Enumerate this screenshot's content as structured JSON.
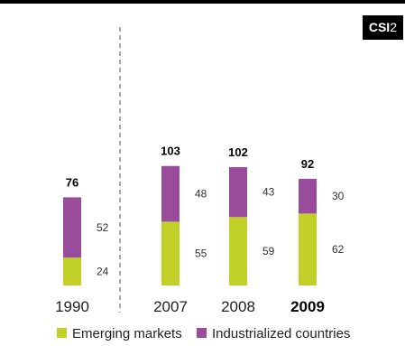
{
  "badge": {
    "code": "CSI",
    "number": "2"
  },
  "colors": {
    "emerging": "#c2d127",
    "industrialized": "#994c9c"
  },
  "chart_data": {
    "type": "bar",
    "stacked": true,
    "categories": [
      "1990",
      "2007",
      "2008",
      "2009"
    ],
    "highlighted_category": "2009",
    "series": [
      {
        "name": "Emerging markets",
        "values": [
          24,
          55,
          59,
          62
        ]
      },
      {
        "name": "Industrialized countries",
        "values": [
          52,
          48,
          43,
          30
        ]
      }
    ],
    "totals": [
      76,
      103,
      102,
      92
    ],
    "title": "",
    "xlabel": "",
    "ylabel": "",
    "legend": "bottom",
    "grid": false
  }
}
